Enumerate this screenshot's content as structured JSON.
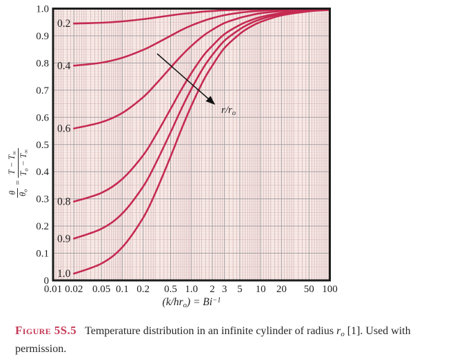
{
  "caption": {
    "label": "Figure 5S.5",
    "text_1": "Temperature distribution in an infinite cylinder of radius ",
    "r": "r",
    "r_sub": "o",
    "text_2": " [1]. Used with permission."
  },
  "axes": {
    "x_title": {
      "pre": "(k/hr",
      "sub": "o",
      "mid": ") = Bi",
      "sup": "−1"
    },
    "y_title": {
      "num1": "θ",
      "den1": "θ",
      "den1_sub": "o",
      "eq": "=",
      "num2_a": "T − T",
      "num2_sub": "∞",
      "den2_a": "T",
      "den2_sub1": "o",
      "den2_b": " − T",
      "den2_sub2": "∞"
    },
    "x_ticks": [
      {
        "label": "0.01",
        "v": 0.01
      },
      {
        "label": "0.02",
        "v": 0.02
      },
      {
        "label": "0.05",
        "v": 0.05
      },
      {
        "label": "0.1",
        "v": 0.1
      },
      {
        "label": "0.2",
        "v": 0.2
      },
      {
        "label": "0.5",
        "v": 0.5
      },
      {
        "label": "1.0",
        "v": 1
      },
      {
        "label": "2",
        "v": 2
      },
      {
        "label": "3",
        "v": 3
      },
      {
        "label": "5",
        "v": 5
      },
      {
        "label": "10",
        "v": 10
      },
      {
        "label": "20",
        "v": 20
      },
      {
        "label": "50",
        "v": 50
      },
      {
        "label": "100",
        "v": 100
      }
    ],
    "y_ticks": [
      {
        "label": "1.0",
        "v": 1.0
      },
      {
        "label": "0.9",
        "v": 0.9
      },
      {
        "label": "0.8",
        "v": 0.8
      },
      {
        "label": "0.7",
        "v": 0.7
      },
      {
        "label": "0.6",
        "v": 0.6
      },
      {
        "label": "0.5",
        "v": 0.5
      },
      {
        "label": "0.4",
        "v": 0.4
      },
      {
        "label": "0.3",
        "v": 0.3
      },
      {
        "label": "0.2",
        "v": 0.2
      },
      {
        "label": "0.1",
        "v": 0.1
      },
      {
        "label": "0",
        "v": 0
      }
    ]
  },
  "annotation": {
    "label_pre": "r/r",
    "label_sub": "o"
  },
  "colors": {
    "curve": "#c52a52",
    "plot_bg": "#f8ebe7",
    "grid_major": "#a59da1",
    "grid_minor_v": "#d8bcbf",
    "grid_minor_h": "#eedad6",
    "grid_mid_h": "#ddc1be",
    "axis": "#1c1c1c",
    "text": "#1f1f1f",
    "caption_label": "#c43a55"
  },
  "chart_data": {
    "type": "line",
    "title": "",
    "xlabel": "(k/hr_o) = Bi^-1",
    "ylabel": "theta/theta_o = (T - T_inf) / (T_o - T_inf)",
    "x_scale": "log",
    "xlim": [
      0.01,
      100
    ],
    "ylim": [
      0,
      1
    ],
    "grid": true,
    "x": [
      0.02,
      0.05,
      0.1,
      0.2,
      0.3,
      0.5,
      0.7,
      1,
      1.5,
      2,
      3,
      5,
      7,
      10,
      20,
      50,
      100
    ],
    "series": [
      {
        "name": "r/ro = 0.2",
        "label": "0.2",
        "values": [
          0.945,
          0.948,
          0.953,
          0.961,
          0.967,
          0.975,
          0.98,
          0.984,
          0.989,
          0.991,
          0.994,
          0.996,
          0.997,
          0.998,
          0.999,
          1.0,
          1.0
        ]
      },
      {
        "name": "r/ro = 0.4",
        "label": "0.4",
        "values": [
          0.79,
          0.801,
          0.819,
          0.848,
          0.87,
          0.9,
          0.92,
          0.938,
          0.955,
          0.965,
          0.976,
          0.985,
          0.989,
          0.992,
          0.996,
          0.998,
          0.999
        ]
      },
      {
        "name": "r/ro = 0.6",
        "label": "0.6",
        "values": [
          0.559,
          0.582,
          0.616,
          0.674,
          0.72,
          0.783,
          0.824,
          0.863,
          0.901,
          0.922,
          0.947,
          0.966,
          0.975,
          0.983,
          0.991,
          0.996,
          0.998
        ]
      },
      {
        "name": "r/ro = 0.8",
        "label": "0.8",
        "values": [
          0.29,
          0.322,
          0.373,
          0.46,
          0.531,
          0.631,
          0.698,
          0.763,
          0.828,
          0.863,
          0.906,
          0.94,
          0.956,
          0.969,
          0.984,
          0.994,
          0.997
        ]
      },
      {
        "name": "r/ro = 0.9",
        "label": "0.9",
        "values": [
          0.154,
          0.19,
          0.246,
          0.345,
          0.427,
          0.545,
          0.626,
          0.705,
          0.784,
          0.829,
          0.882,
          0.924,
          0.945,
          0.961,
          0.98,
          0.992,
          0.996
        ]
      },
      {
        "name": "r/ro = 1.0",
        "label": "1.0",
        "values": [
          0.025,
          0.062,
          0.122,
          0.23,
          0.321,
          0.456,
          0.55,
          0.643,
          0.737,
          0.79,
          0.855,
          0.907,
          0.932,
          0.951,
          0.975,
          0.99,
          0.995
        ]
      }
    ],
    "annotation_arrow_label": "r/r_o",
    "legend": "curve labels at left, values of r/r_o"
  }
}
